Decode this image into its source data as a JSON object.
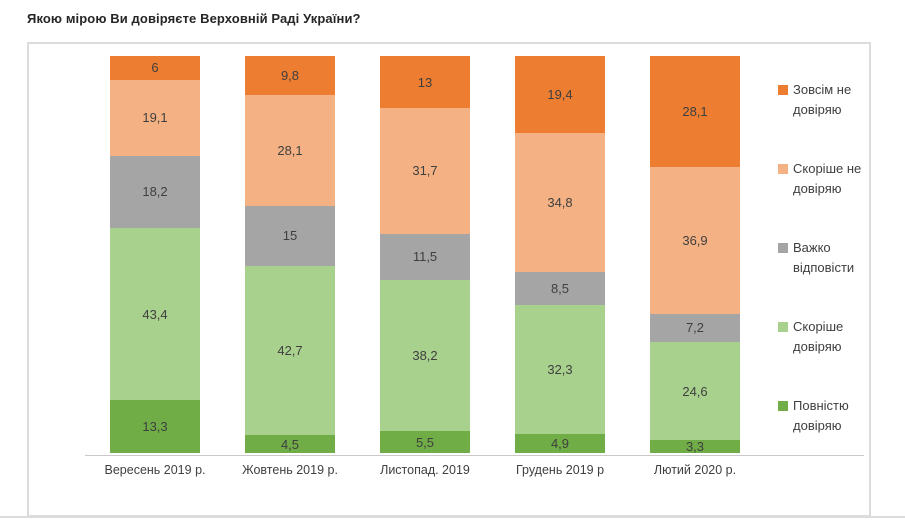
{
  "chart_data": {
    "type": "bar",
    "stacked": true,
    "title": "Якою мірою Ви довіряєте Верховній Раді України?",
    "xlabel": "",
    "ylabel": "",
    "ylim": [
      0,
      100
    ],
    "grid": false,
    "legend_position": "right",
    "value_decimal_separator": ",",
    "categories": [
      "Вересень 2019 р.",
      "Жовтень 2019 р.",
      "Листопад. 2019",
      "Грудень 2019 р",
      "Лютий 2020 р."
    ],
    "series": [
      {
        "name": "Повністю довіряю",
        "color": "#70AD47",
        "values": [
          13.3,
          4.5,
          5.5,
          4.9,
          3.3
        ],
        "labels": [
          "13,3",
          "4,5",
          "5,5",
          "4,9",
          "3,3"
        ]
      },
      {
        "name": "Скоріше довіряю",
        "color": "#A9D18E",
        "values": [
          43.4,
          42.7,
          38.2,
          32.3,
          24.6
        ],
        "labels": [
          "43,4",
          "42,7",
          "38,2",
          "32,3",
          "24,6"
        ]
      },
      {
        "name": "Важко відповісти",
        "color": "#A5A5A5",
        "values": [
          18.2,
          15,
          11.5,
          8.5,
          7.2
        ],
        "labels": [
          "18,2",
          "15",
          "11,5",
          "8,5",
          "7,2"
        ]
      },
      {
        "name": "Скоріше  не довіряю",
        "color": "#F4B183",
        "values": [
          19.1,
          28.1,
          31.7,
          34.8,
          36.9
        ],
        "labels": [
          "19,1",
          "28,1",
          "31,7",
          "34,8",
          "36,9"
        ]
      },
      {
        "name": "Зовсім не довіряю",
        "color": "#ED7D31",
        "values": [
          6,
          9.8,
          13,
          19.4,
          28.1
        ],
        "labels": [
          "6",
          "9,8",
          "13",
          "19,4",
          "28,1"
        ]
      }
    ]
  }
}
